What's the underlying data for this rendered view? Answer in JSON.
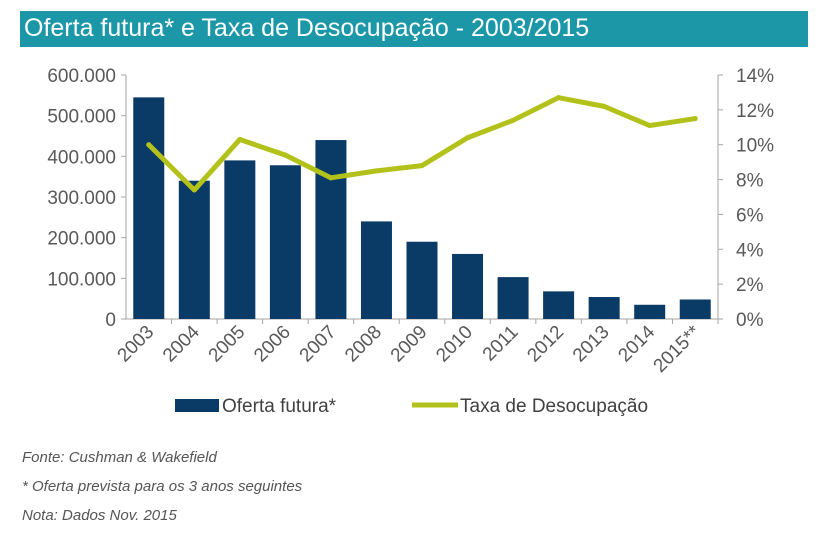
{
  "chart_data": {
    "type": "bar",
    "title": "Oferta futura* e Taxa de Desocupação - 2003/2015",
    "categories": [
      "2003",
      "2004",
      "2005",
      "2006",
      "2007",
      "2008",
      "2009",
      "2010",
      "2011",
      "2012",
      "2013",
      "2014",
      "2015**"
    ],
    "series": [
      {
        "name": "Oferta futura*",
        "type": "bar",
        "axis": "left",
        "color": "#0a3a66",
        "values": [
          545000,
          340000,
          390000,
          378000,
          440000,
          240000,
          190000,
          160000,
          103000,
          68000,
          54000,
          35000,
          48000
        ]
      },
      {
        "name": "Taxa de Desocupação",
        "type": "line",
        "axis": "right",
        "color": "#b3c21a",
        "values": [
          10.0,
          7.4,
          10.3,
          9.4,
          8.1,
          8.5,
          8.8,
          10.4,
          11.4,
          12.7,
          12.2,
          11.1,
          11.5
        ]
      }
    ],
    "y_left": {
      "ylim": [
        0,
        600000
      ],
      "ticks": [
        "0",
        "100.000",
        "200.000",
        "300.000",
        "400.000",
        "500.000",
        "600.000"
      ]
    },
    "y_right": {
      "ylim": [
        0,
        14
      ],
      "ticks": [
        "0%",
        "2%",
        "4%",
        "6%",
        "8%",
        "10%",
        "12%",
        "14%"
      ]
    },
    "grid": false,
    "legend": "bottom"
  },
  "notes": {
    "source": "Fonte: Cushman & Wakefield",
    "footnote": "* Oferta prevista para os 3 anos seguintes",
    "date_note": "Nota: Dados Nov. 2015"
  }
}
